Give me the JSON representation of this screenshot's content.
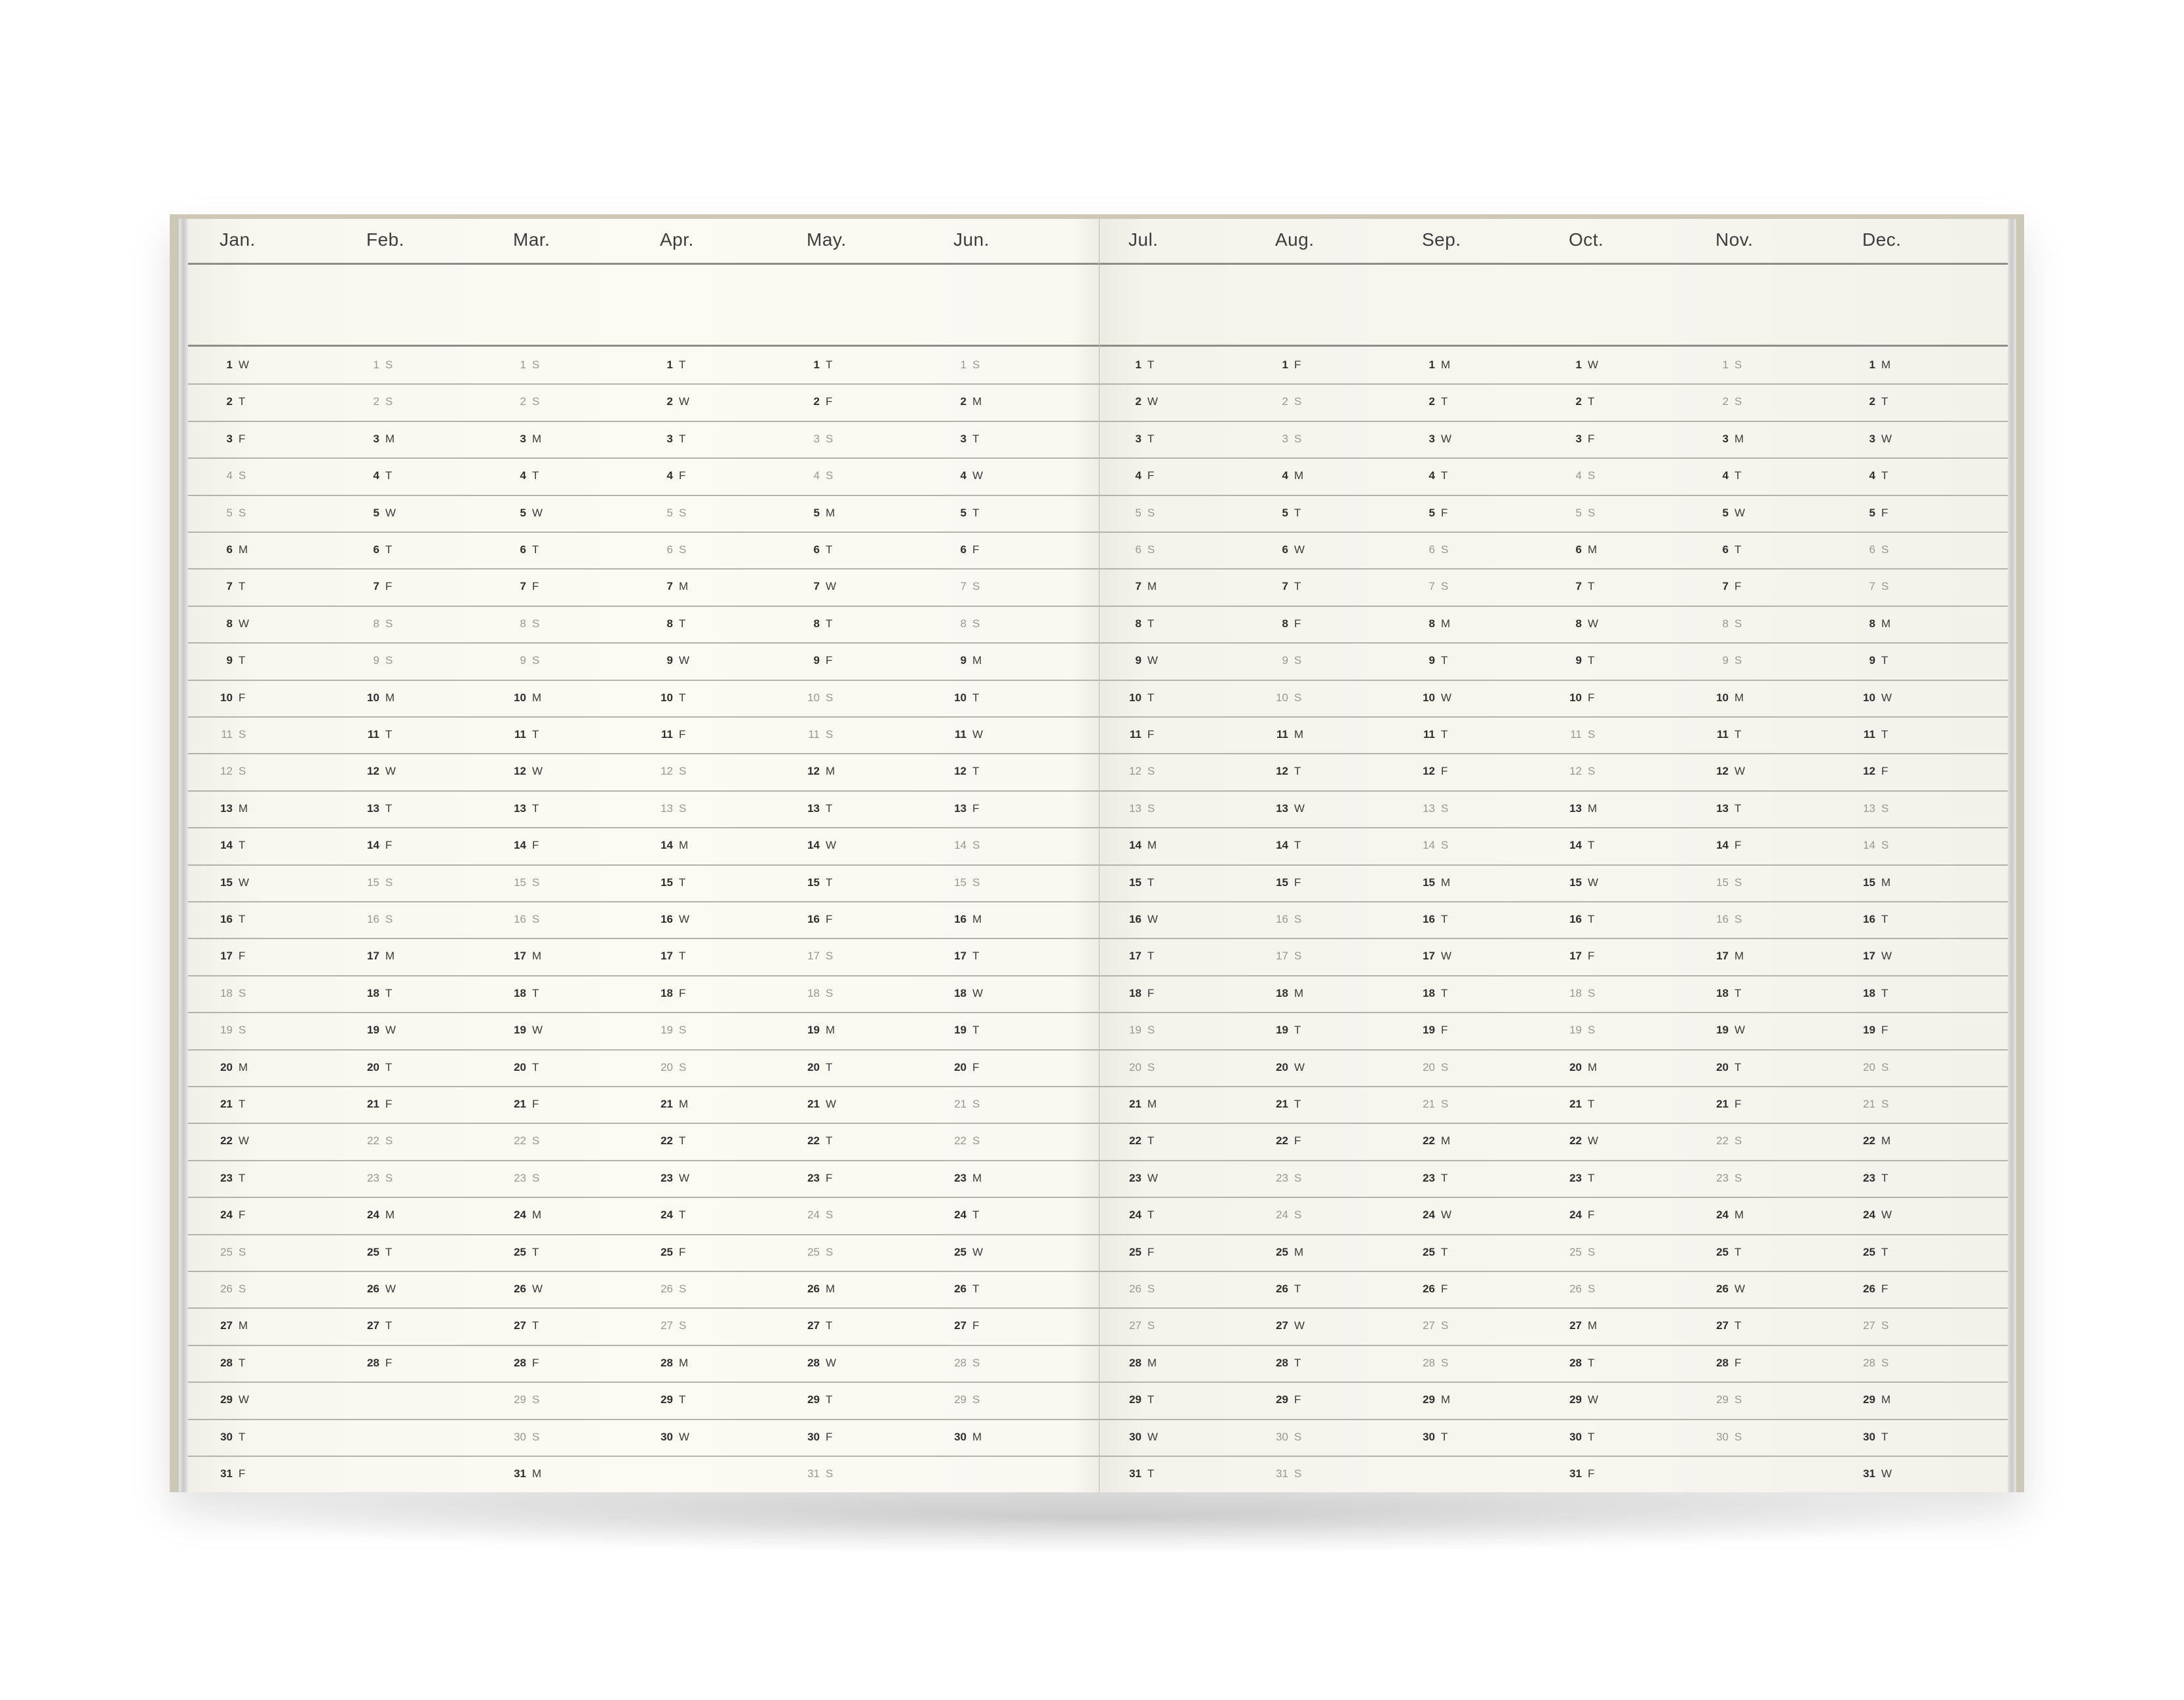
{
  "planner": {
    "colors": {
      "cover": "#cdc8b6",
      "paper": "#faf9f2",
      "text": "#2e2e2e",
      "weekend_text": "#9a9690",
      "rule": "#b4b2ab"
    },
    "pages": [
      {
        "months": [
          {
            "name": "Jan.",
            "weekdays": "WTFSSMTWTFSSMTWTFSSMTWTFSSMTWTF"
          },
          {
            "name": "Feb.",
            "weekdays": "SSMTWTFSSMTWTFSSMTWTFSSMTWTF"
          },
          {
            "name": "Mar.",
            "weekdays": "SSMTWTFSSMTWTFSSMTWTFSSMTWTFSSM"
          },
          {
            "name": "Apr.",
            "weekdays": "TWTFSSMTWTFSSMTWTFSSMTWTFSSMTW"
          },
          {
            "name": "May.",
            "weekdays": "TFSSMTWTFSSMTWTFSSMTWTFSSMTWTFS"
          },
          {
            "name": "Jun.",
            "weekdays": "SMTWTFSSMTWTFSSMTWTFSSMTWTFSSM"
          }
        ]
      },
      {
        "months": [
          {
            "name": "Jul.",
            "weekdays": "TWTFSSMTWTFSSMTWTFSSMTWTFSSMTWT"
          },
          {
            "name": "Aug.",
            "weekdays": "FSSMTWTFSSMTWTFSSMTWTFSSMTWTFSS"
          },
          {
            "name": "Sep.",
            "weekdays": "MTWTFSSMTWTFSSMTWTFSSMTWTFSSMT"
          },
          {
            "name": "Oct.",
            "weekdays": "WTFSSMTWTFSSMTWTFSSMTWTFSSMTWTF"
          },
          {
            "name": "Nov.",
            "weekdays": "SSMTWTFSSMTWTFSSMTWTFSSMTWTFSS"
          },
          {
            "name": "Dec.",
            "weekdays": "MTWTFSSMTWTFSSMTWTFSSMTWTFSSMTW"
          }
        ]
      }
    ]
  }
}
